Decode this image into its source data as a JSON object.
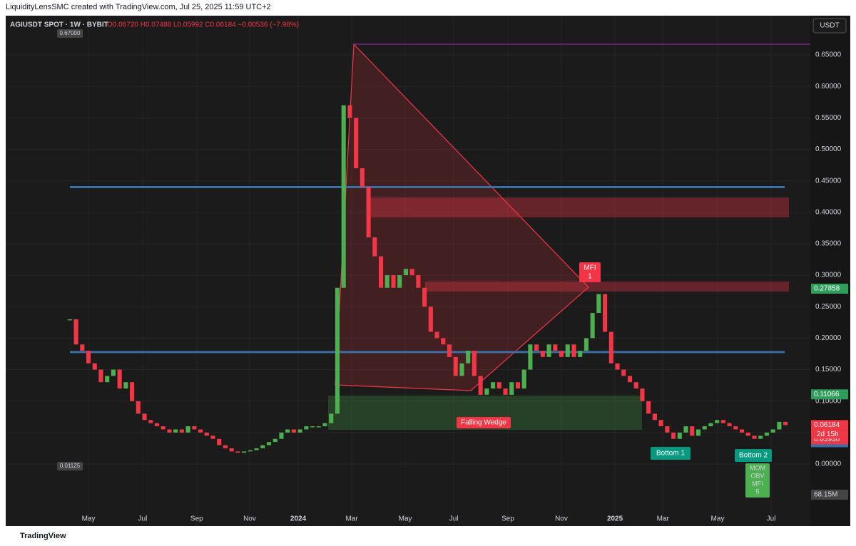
{
  "header": "LiquidityLensSMC created with TradingView.com, Jul 25, 2025 11:59 UTC+2",
  "footer": "TradingView",
  "chart_data": {
    "type": "candlestick",
    "title": "AGIUSDT SPOT · 1W · BYBIT",
    "subtitle": "O0.06720 H0.07488 L0.05992 C0.06184 −0.00536 (−7.98%)",
    "currency": "USDT",
    "up_color": "#4caf50",
    "down_color": "#f23645",
    "values": [
      0.23,
      0.19,
      0.18,
      0.16,
      0.15,
      0.13,
      0.14,
      0.15,
      0.12,
      0.13,
      0.1,
      0.08,
      0.07,
      0.065,
      0.06,
      0.055,
      0.05,
      0.055,
      0.05,
      0.06,
      0.055,
      0.05,
      0.045,
      0.04,
      0.03,
      0.025,
      0.02,
      0.018,
      0.02,
      0.022,
      0.025,
      0.03,
      0.035,
      0.04,
      0.05,
      0.055,
      0.05,
      0.055,
      0.06,
      0.06,
      0.06,
      0.065,
      0.08,
      0.28,
      0.57,
      0.55,
      0.47,
      0.44,
      0.36,
      0.33,
      0.28,
      0.3,
      0.28,
      0.3,
      0.31,
      0.3,
      0.28,
      0.25,
      0.21,
      0.2,
      0.19,
      0.17,
      0.14,
      0.16,
      0.18,
      0.14,
      0.11,
      0.12,
      0.13,
      0.12,
      0.11,
      0.13,
      0.12,
      0.15,
      0.19,
      0.18,
      0.17,
      0.19,
      0.18,
      0.17,
      0.19,
      0.17,
      0.18,
      0.2,
      0.24,
      0.27,
      0.21,
      0.16,
      0.15,
      0.14,
      0.13,
      0.12,
      0.1,
      0.08,
      0.07,
      0.06,
      0.05,
      0.04,
      0.05,
      0.06,
      0.045,
      0.055,
      0.06,
      0.065,
      0.07,
      0.065,
      0.06,
      0.055,
      0.05,
      0.045,
      0.04,
      0.045,
      0.05,
      0.055,
      0.067,
      0.06184
    ],
    "xlim": [
      -10.3,
      119.0
    ],
    "xticks": [
      {
        "value": 3.0,
        "label": "May"
      },
      {
        "value": 11.7,
        "label": "Jul"
      },
      {
        "value": 20.4,
        "label": "Sep"
      },
      {
        "value": 28.9,
        "label": "Nov"
      },
      {
        "value": 36.7,
        "label": "2024"
      },
      {
        "value": 45.3,
        "label": "Mar"
      },
      {
        "value": 53.9,
        "label": "May"
      },
      {
        "value": 61.7,
        "label": "Jul"
      },
      {
        "value": 70.4,
        "label": "Sep"
      },
      {
        "value": 79.0,
        "label": "Nov"
      },
      {
        "value": 87.6,
        "label": "2025"
      },
      {
        "value": 95.3,
        "label": "Mar"
      },
      {
        "value": 104.1,
        "label": "May"
      },
      {
        "value": 112.7,
        "label": "Jul"
      }
    ],
    "ylim": [
      -0.0985,
      0.7123
    ],
    "yticks": [
      {
        "value": 0.0,
        "label": "0.00000"
      },
      {
        "value": 0.05,
        "label": "0.05000"
      },
      {
        "value": 0.1,
        "label": "0.10000"
      },
      {
        "value": 0.15,
        "label": "0.15000"
      },
      {
        "value": 0.2,
        "label": "0.20000"
      },
      {
        "value": 0.25,
        "label": "0.25000"
      },
      {
        "value": 0.3,
        "label": "0.30000"
      },
      {
        "value": 0.35,
        "label": "0.35000"
      },
      {
        "value": 0.4,
        "label": "0.40000"
      },
      {
        "value": 0.45,
        "label": "0.45000"
      },
      {
        "value": 0.5,
        "label": "0.50000"
      },
      {
        "value": 0.55,
        "label": "0.55000"
      },
      {
        "value": 0.6,
        "label": "0.60000"
      },
      {
        "value": 0.65,
        "label": "0.65000"
      }
    ],
    "levels": [
      {
        "value": 0.44,
        "color": "#3a6ea5"
      },
      {
        "value": 0.178,
        "color": "#3a6ea5"
      }
    ],
    "price_labels": [
      {
        "value": 0.27858,
        "label": "0.27858",
        "color": "#2e9e5b"
      },
      {
        "value": 0.11066,
        "label": "0.11066",
        "color": "#2e9e5b"
      },
      {
        "value": 0.06184,
        "label": "0.06184",
        "color": "#f23645"
      },
      {
        "value": 0.06184,
        "label": "0.06184",
        "color": "#3a6ea5"
      },
      {
        "value": 0.0393,
        "label": "0.03930",
        "color": "#f23645"
      }
    ],
    "countdown": "2d 15h",
    "volume_label": "68.15M",
    "high_label": "0.67000",
    "low_label": "0.01125",
    "annotations": [
      "Falling Wedge",
      "MFI",
      "1",
      "Bottom 1",
      "Bottom 2",
      "MOM",
      "OBV",
      "MFI",
      "5"
    ]
  }
}
